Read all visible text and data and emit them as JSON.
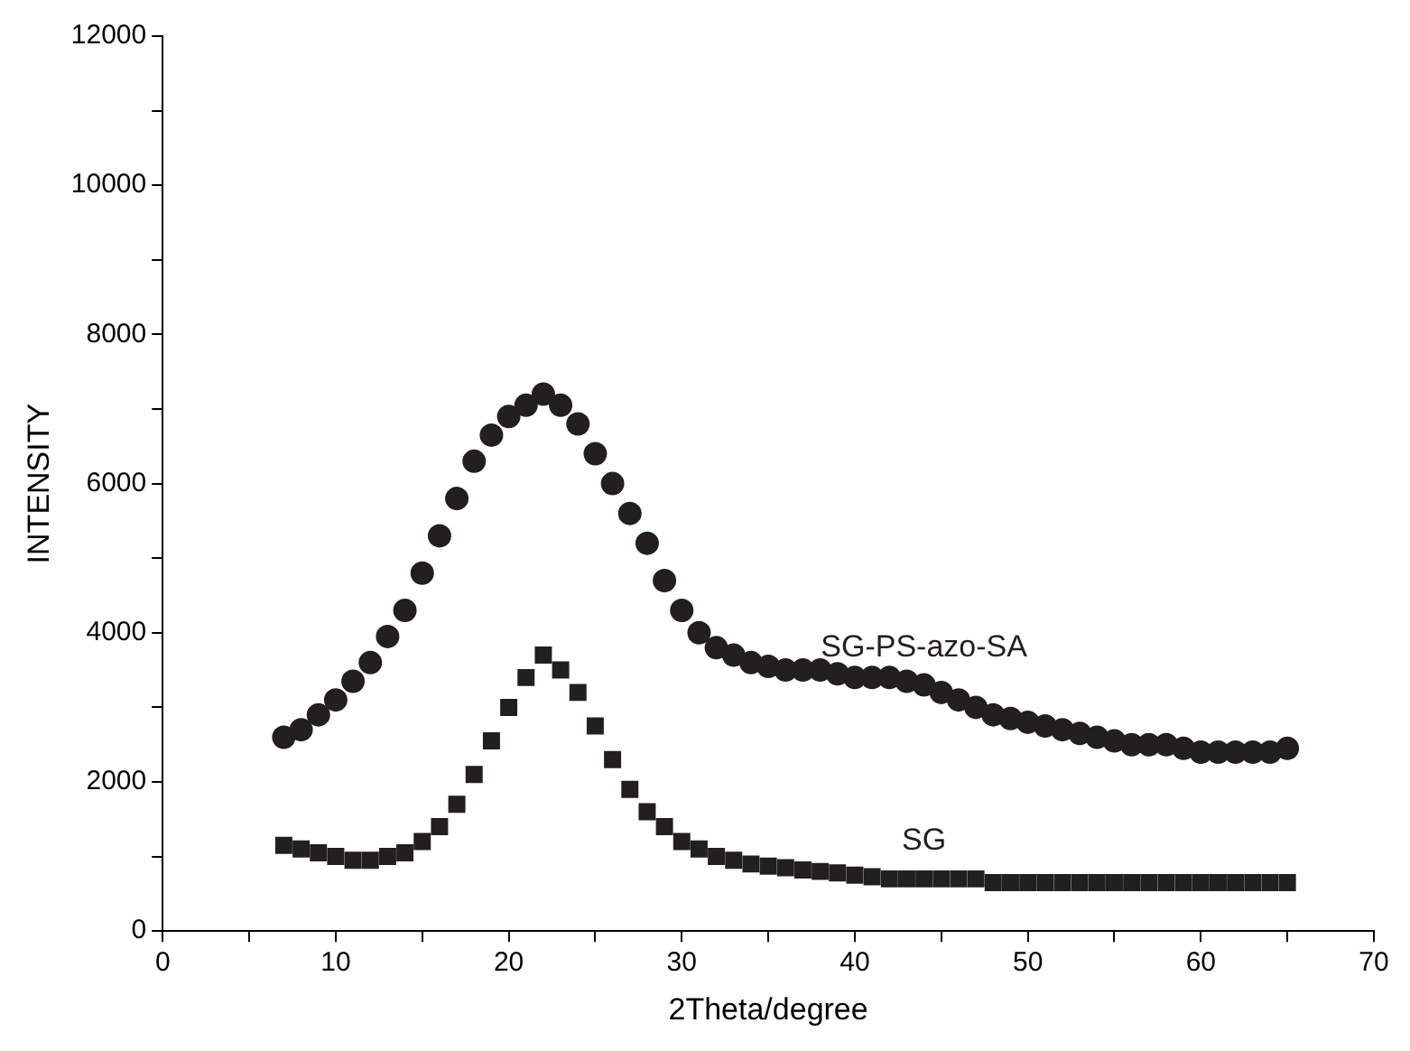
{
  "chart_data": {
    "type": "scatter",
    "xlabel": "2Theta/degree",
    "ylabel": "INTENSITY",
    "xlim": [
      0,
      70
    ],
    "ylim": [
      0,
      12000
    ],
    "xticks": [
      0,
      {
        "value": 5,
        "label": null
      },
      10,
      {
        "value": 15,
        "label": null
      },
      20,
      {
        "value": 25,
        "label": null
      },
      30,
      {
        "value": 35,
        "label": null
      },
      40,
      {
        "value": 45,
        "label": null
      },
      50,
      {
        "value": 55,
        "label": null
      },
      60,
      {
        "value": 65,
        "label": null
      },
      70
    ],
    "yticks": [
      0,
      {
        "value": 1000,
        "label": null
      },
      2000,
      {
        "value": 3000,
        "label": null
      },
      4000,
      {
        "value": 5000,
        "label": null
      },
      6000,
      {
        "value": 7000,
        "label": null
      },
      8000,
      {
        "value": 9000,
        "label": null
      },
      10000,
      {
        "value": 11000,
        "label": null
      },
      12000
    ],
    "grid": false,
    "legend": false,
    "x": [
      7,
      8,
      9,
      10,
      11,
      12,
      13,
      14,
      15,
      16,
      17,
      18,
      19,
      20,
      21,
      22,
      23,
      24,
      25,
      26,
      27,
      28,
      29,
      30,
      31,
      32,
      33,
      34,
      35,
      36,
      37,
      38,
      39,
      40,
      41,
      42,
      43,
      44,
      45,
      46,
      47,
      48,
      49,
      50,
      51,
      52,
      53,
      54,
      55,
      56,
      57,
      58,
      59,
      60,
      61,
      62,
      63,
      64,
      65
    ],
    "series": [
      {
        "name": "SG-PS-azo-SA",
        "color": "#231f20",
        "marker": "circle",
        "values": [
          2600,
          2700,
          2900,
          3100,
          3350,
          3600,
          3950,
          4300,
          4800,
          5300,
          5800,
          6300,
          6650,
          6900,
          7050,
          7200,
          7050,
          6800,
          6400,
          6000,
          5600,
          5200,
          4700,
          4300,
          4000,
          3800,
          3700,
          3600,
          3550,
          3500,
          3500,
          3500,
          3450,
          3400,
          3400,
          3400,
          3350,
          3300,
          3200,
          3100,
          3000,
          2900,
          2850,
          2800,
          2750,
          2700,
          2650,
          2600,
          2550,
          2500,
          2500,
          2500,
          2450,
          2400,
          2400,
          2400,
          2400,
          2400,
          2450
        ]
      },
      {
        "name": "SG",
        "color": "#231f20",
        "marker": "square",
        "values": [
          1150,
          1100,
          1050,
          1000,
          950,
          950,
          1000,
          1050,
          1200,
          1400,
          1700,
          2100,
          2550,
          3000,
          3400,
          3700,
          3500,
          3200,
          2750,
          2300,
          1900,
          1600,
          1400,
          1200,
          1100,
          1000,
          950,
          900,
          870,
          850,
          820,
          800,
          780,
          750,
          730,
          700,
          700,
          700,
          700,
          700,
          700,
          650,
          650,
          650,
          650,
          650,
          650,
          650,
          650,
          650,
          650,
          650,
          650,
          650,
          650,
          650,
          650,
          650,
          650
        ]
      }
    ]
  }
}
